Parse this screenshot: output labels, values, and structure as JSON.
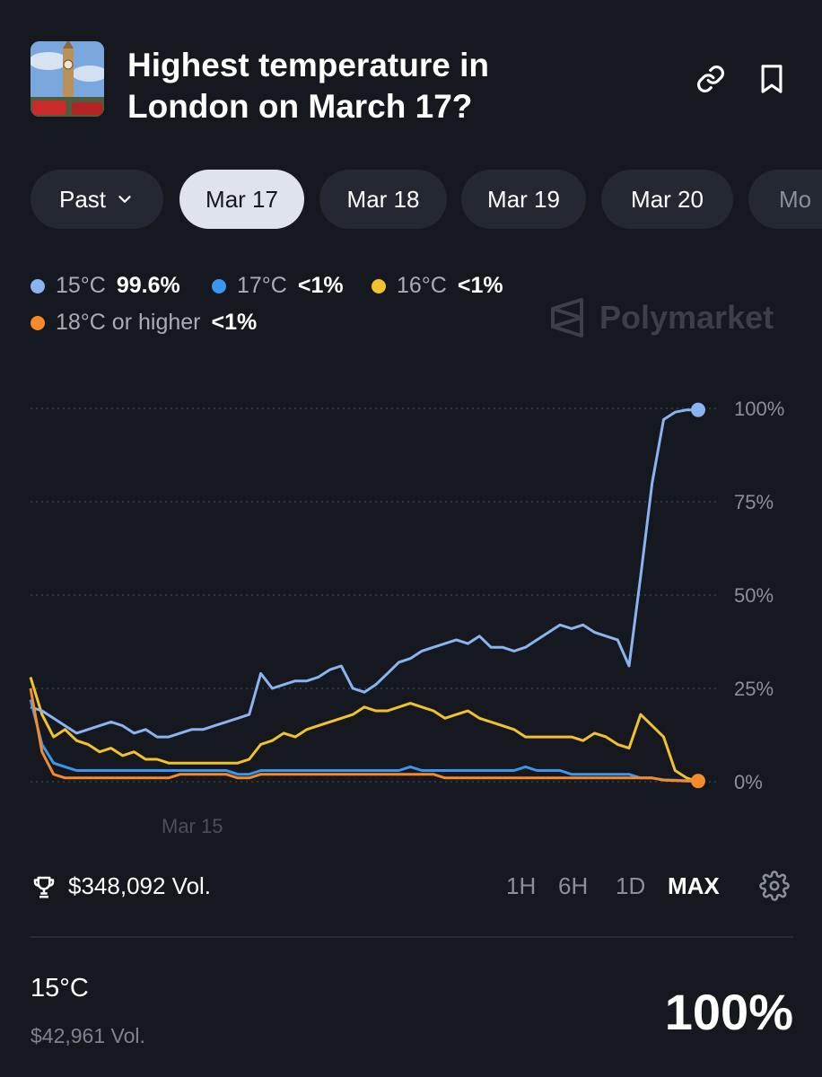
{
  "market": {
    "title": "Highest temperature in London on March 17?",
    "thumbnail_icon": "big-ben-thumbnail"
  },
  "header": {
    "link_icon": "link-icon",
    "bookmark_icon": "bookmark-icon"
  },
  "tabs": [
    {
      "label": "Past"
    },
    {
      "label": "Mar 17"
    },
    {
      "label": "Mar 18"
    },
    {
      "label": "Mar 19"
    },
    {
      "label": "Mar 20"
    },
    {
      "label": "Mo"
    }
  ],
  "legend": [
    {
      "label": "15°C",
      "value": "99.6%",
      "color": "#8ab4f0"
    },
    {
      "label": "17°C",
      "value": "<1%",
      "color": "#3b96f0"
    },
    {
      "label": "16°C",
      "value": "<1%",
      "color": "#f2c12e"
    },
    {
      "label": "18°C or higher",
      "value": "<1%",
      "color": "#f58a2a"
    }
  ],
  "watermark": {
    "text": "Polymarket"
  },
  "chart_data": {
    "type": "line",
    "x_label": "Mar 15",
    "ylim": [
      0,
      100
    ],
    "y_ticks": [
      "100%",
      "75%",
      "50%",
      "25%",
      "0%"
    ],
    "y_tick_values": [
      100,
      75,
      50,
      25,
      0
    ],
    "grid": true,
    "series": [
      {
        "name": "16°C",
        "color": "#f2c12e",
        "values": [
          28,
          18,
          12,
          14,
          11,
          10,
          8,
          9,
          7,
          8,
          6,
          6,
          5,
          5,
          5,
          5,
          5,
          5,
          5,
          6,
          10,
          11,
          13,
          12,
          14,
          15,
          16,
          17,
          18,
          20,
          19,
          19,
          20,
          21,
          20,
          19,
          17,
          18,
          19,
          17,
          16,
          15,
          14,
          12,
          12,
          12,
          12,
          12,
          11,
          13,
          12,
          10,
          9,
          18,
          15,
          12,
          3,
          1,
          0
        ]
      },
      {
        "name": "15°C",
        "color": "#8ab4f0",
        "values": [
          20,
          19,
          17,
          15,
          13,
          14,
          15,
          16,
          15,
          13,
          14,
          12,
          12,
          13,
          14,
          14,
          15,
          16,
          17,
          18,
          29,
          25,
          26,
          27,
          27,
          28,
          30,
          31,
          25,
          24,
          26,
          29,
          32,
          33,
          35,
          36,
          37,
          38,
          37,
          39,
          36,
          36,
          35,
          36,
          38,
          40,
          42,
          41,
          42,
          40,
          39,
          38,
          31,
          55,
          80,
          97,
          99,
          99.6,
          99.6
        ]
      },
      {
        "name": "17°C",
        "color": "#3b96f0",
        "values": [
          22,
          10,
          5,
          4,
          3,
          3,
          3,
          3,
          3,
          3,
          3,
          3,
          3,
          3,
          3,
          3,
          3,
          3,
          2,
          2,
          3,
          3,
          3,
          3,
          3,
          3,
          3,
          3,
          3,
          3,
          3,
          3,
          3,
          4,
          3,
          3,
          3,
          3,
          3,
          3,
          3,
          3,
          3,
          4,
          3,
          3,
          3,
          2,
          2,
          2,
          2,
          2,
          2,
          1,
          1,
          0.5,
          0.4,
          0.3,
          0.3
        ]
      },
      {
        "name": "18°C or higher",
        "color": "#f58a2a",
        "values": [
          25,
          8,
          2,
          1,
          1,
          1,
          1,
          1,
          1,
          1,
          1,
          1,
          1,
          2,
          2,
          2,
          2,
          2,
          1,
          1,
          2,
          2,
          2,
          2,
          2,
          2,
          2,
          2,
          2,
          2,
          2,
          2,
          2,
          2,
          2,
          2,
          1,
          1,
          1,
          1,
          1,
          1,
          1,
          1,
          1,
          1,
          1,
          1,
          1,
          1,
          1,
          1,
          1,
          1,
          1,
          0.4,
          0.3,
          0.2,
          0.2
        ]
      }
    ]
  },
  "stats": {
    "volume": "$348,092 Vol.",
    "trophy_icon": "trophy-icon",
    "ranges": [
      "1H",
      "6H",
      "1D",
      "MAX"
    ],
    "active_range": "MAX",
    "settings_icon": "gear-icon"
  },
  "outcome": {
    "name": "15°C",
    "volume": "$42,961 Vol.",
    "probability": "100%"
  }
}
